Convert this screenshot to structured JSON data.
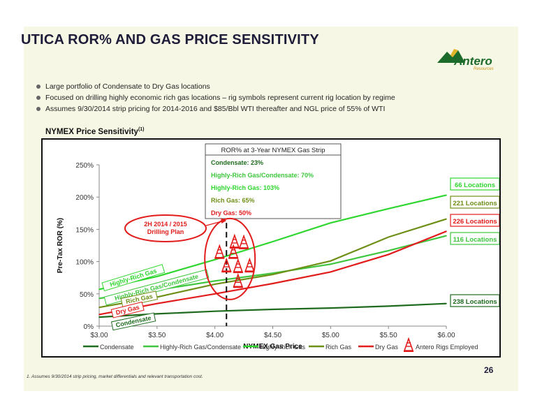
{
  "slide": {
    "title": "UTICA ROR% AND GAS PRICE SENSITIVITY",
    "logo_text": "Antero",
    "logo_sub": "Resources",
    "bullets": [
      "Large portfolio of Condensate to Dry Gas locations",
      "Focused on drilling highly economic rich gas locations – rig symbols represent current rig location by regime",
      "Assumes 9/30/2014 strip pricing for 2014-2016 and $85/Bbl WTI thereafter and NGL price of 55% of WTI"
    ],
    "section_title": "NYMEX Price Sensitivity",
    "section_title_sup": "(1)",
    "page_number": "26",
    "footnote": "1.  Assumes 9/30/2014 strip pricing, market differentials and relevant transportation cost."
  },
  "chart_data": {
    "type": "line",
    "xlabel": "NYMEX Gas Price",
    "ylabel": "Pre-Tax ROR (%)",
    "xlim": [
      3.0,
      6.0
    ],
    "ylim": [
      0,
      250
    ],
    "x_ticks": [
      "$3.00",
      "$3.50",
      "$4.00",
      "$4.50",
      "$5.00",
      "$5.50",
      "$6.00"
    ],
    "y_ticks": [
      "0%",
      "50%",
      "100%",
      "150%",
      "200%",
      "250%"
    ],
    "series": [
      {
        "name": "Condensate",
        "color": "#1e6b1e",
        "x": [
          3.0,
          3.5,
          4.0,
          4.5,
          5.0,
          5.5,
          6.0
        ],
        "y": [
          14,
          19,
          23,
          26,
          28,
          31,
          35
        ],
        "inline_label": "Condensate",
        "locations": "238 Locations"
      },
      {
        "name": "Highly-Rich Gas/Condensate",
        "color": "#3ec63e",
        "x": [
          3.0,
          3.5,
          4.0,
          4.5,
          5.0,
          5.5,
          6.0
        ],
        "y": [
          43,
          56,
          70,
          82,
          96,
          117,
          140
        ],
        "inline_label": "Highly-Rich Gas/Condensate",
        "locations": "116 Locations"
      },
      {
        "name": "Highly-Rich Gas",
        "color": "#2fd62f",
        "x": [
          3.0,
          3.5,
          4.0,
          4.5,
          5.0,
          5.5,
          6.0
        ],
        "y": [
          57,
          77,
          103,
          131,
          160,
          182,
          203
        ],
        "inline_label": "Highly-Rich Gas",
        "locations": "66 Locations"
      },
      {
        "name": "Rich Gas",
        "color": "#6e8f16",
        "x": [
          3.0,
          3.5,
          4.0,
          4.5,
          5.0,
          5.5,
          6.0
        ],
        "y": [
          29,
          45,
          65,
          80,
          101,
          138,
          166
        ],
        "inline_label": "Rich Gas",
        "locations": "221 Locations"
      },
      {
        "name": "Dry Gas",
        "color": "#e21b1b",
        "x": [
          3.0,
          3.5,
          4.0,
          4.5,
          5.0,
          5.5,
          6.0
        ],
        "y": [
          18,
          35,
          50,
          66,
          84,
          111,
          147
        ],
        "inline_label": "Dry Gas",
        "locations": "226 Locations"
      }
    ],
    "rig_legend": "Antero Rigs Employed",
    "rig_current_price": 4.1,
    "strip_box": {
      "title": "ROR% at 3-Year NYMEX Gas Strip",
      "lines": [
        {
          "text": "Condensate: 23%",
          "color": "#1e6b1e"
        },
        {
          "text": "Highly-Rich Gas/Condensate: 70%",
          "color": "#3ec63e"
        },
        {
          "text": "Highly-Rich Gas: 103%",
          "color": "#2fd62f"
        },
        {
          "text": "Rich Gas: 65%",
          "color": "#6e8f16"
        },
        {
          "text": "Dry Gas: 50%",
          "color": "#e21b1b"
        }
      ]
    },
    "callout": "2H 2014 / 2015\nDrilling Plan"
  }
}
